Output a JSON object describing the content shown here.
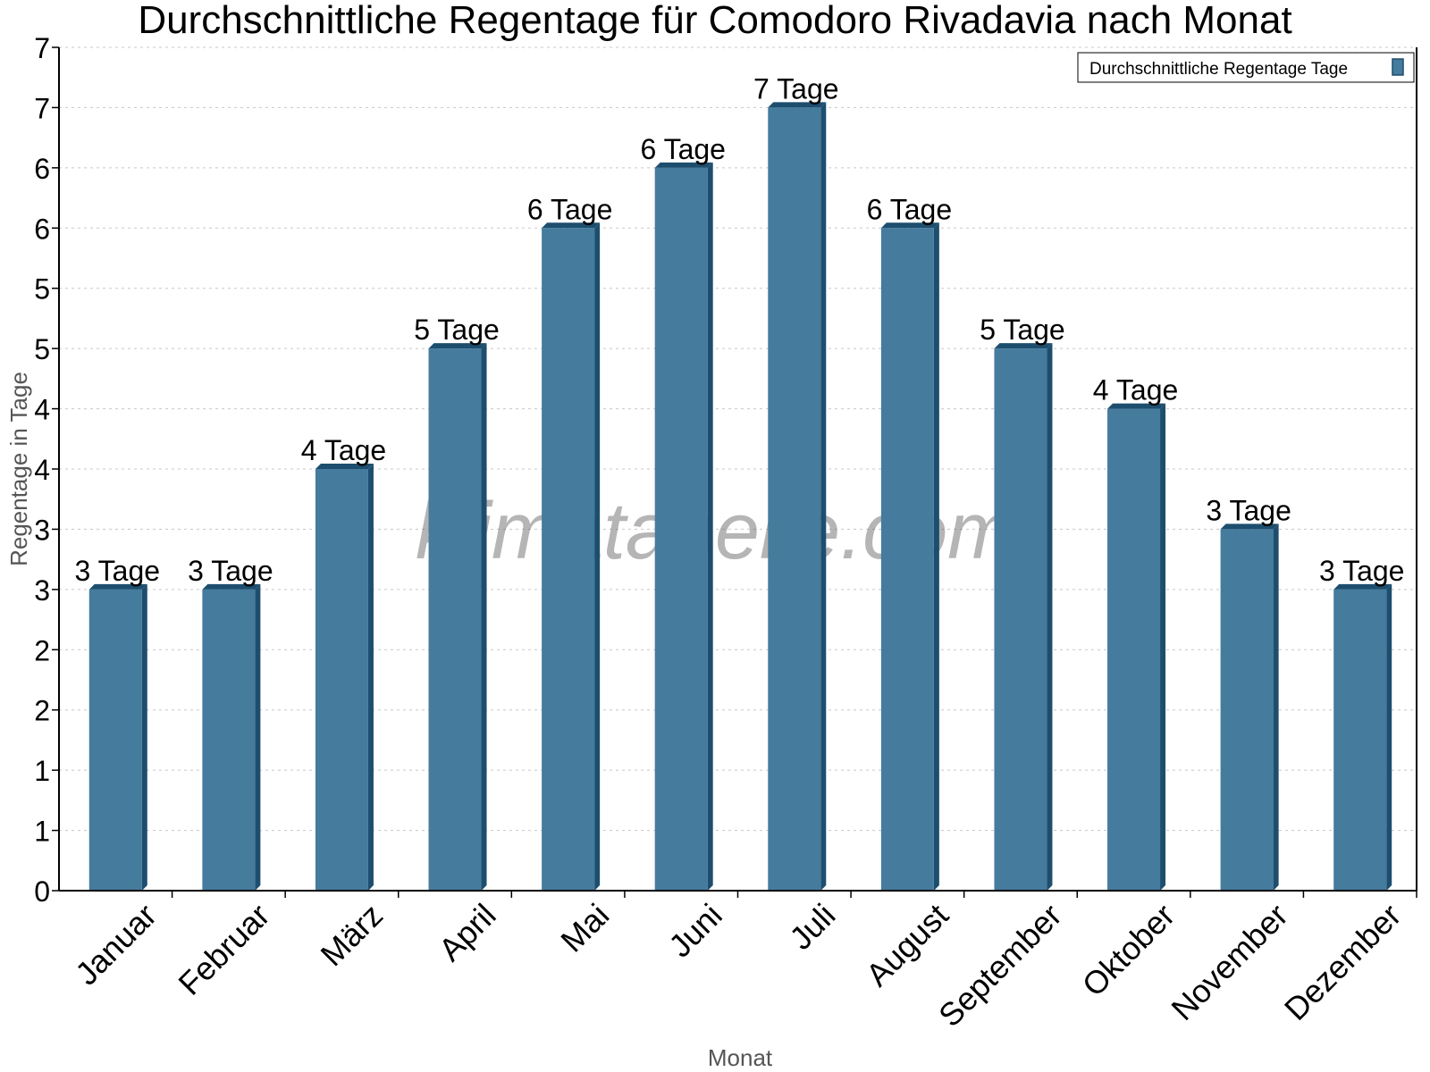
{
  "chart_data": {
    "type": "bar",
    "title": "Durchschnittliche Regentage für Comodoro Rivadavia nach Monat",
    "xlabel": "Monat",
    "ylabel": "Regentage in Tage",
    "categories": [
      "Januar",
      "Februar",
      "März",
      "April",
      "Mai",
      "Juni",
      "Juli",
      "August",
      "September",
      "Oktober",
      "November",
      "Dezember"
    ],
    "series": [
      {
        "name": "Durchschnittliche Regentage Tage",
        "values": [
          2.5,
          2.5,
          3.5,
          4.5,
          5.5,
          6,
          6.5,
          5.5,
          4.5,
          4,
          3,
          2.5
        ]
      }
    ],
    "data_labels": [
      "3 Tage",
      "3 Tage",
      "4 Tage",
      "5 Tage",
      "6 Tage",
      "6 Tage",
      "7 Tage",
      "6 Tage",
      "5 Tage",
      "4 Tage",
      "3 Tage",
      "3 Tage"
    ],
    "ylim": [
      0,
      7
    ],
    "yticks": [
      0,
      0.5,
      1,
      1.5,
      2,
      2.5,
      3,
      3.5,
      4,
      4.5,
      5,
      5.5,
      6,
      6.5,
      7
    ],
    "ytick_labels": [
      "0",
      "1",
      "1",
      "2",
      "2",
      "3",
      "3",
      "4",
      "4",
      "5",
      "5",
      "6",
      "6",
      "7",
      "7"
    ],
    "grid": true,
    "legend_position": "top-right",
    "colors": {
      "bar": "#457b9d",
      "bar_side": "#1d4e6e"
    },
    "watermark": "klimatabelle.com"
  }
}
